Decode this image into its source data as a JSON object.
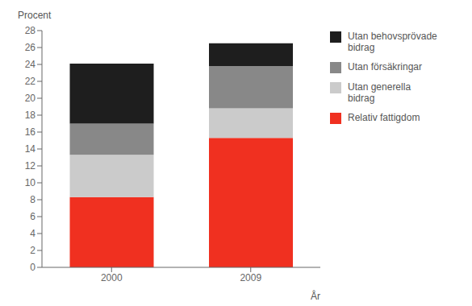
{
  "chart_data": {
    "type": "bar",
    "stacked": true,
    "categories": [
      "2000",
      "2009"
    ],
    "series": [
      {
        "name": "Relativ fattigdom",
        "color": "#f03020",
        "values": [
          8.3,
          15.3
        ]
      },
      {
        "name": "Utan generella\nbidrag",
        "color": "#cbcbcb",
        "values": [
          5.0,
          3.5
        ]
      },
      {
        "name": "Utan försäkringar",
        "color": "#888888",
        "values": [
          3.7,
          5.0
        ]
      },
      {
        "name": "Utan behovsprövade\nbidrag",
        "color": "#1e1e1e",
        "values": [
          7.1,
          2.7
        ]
      }
    ],
    "ylabel": "Procent",
    "xlabel": "År",
    "ylim": [
      0,
      28
    ],
    "yticks": [
      0,
      2,
      4,
      6,
      8,
      10,
      12,
      14,
      16,
      18,
      20,
      22,
      24,
      26,
      28
    ],
    "grid": false,
    "legend": "right"
  }
}
